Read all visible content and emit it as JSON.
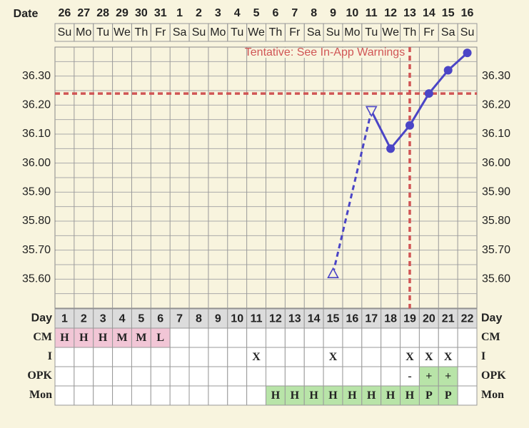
{
  "chart_data": {
    "type": "line",
    "date_label": "Date",
    "dates": [
      "26",
      "27",
      "28",
      "29",
      "30",
      "31",
      "1",
      "2",
      "3",
      "4",
      "5",
      "6",
      "7",
      "8",
      "9",
      "10",
      "11",
      "12",
      "13",
      "14",
      "15",
      "16"
    ],
    "weekdays": [
      "Su",
      "Mo",
      "Tu",
      "We",
      "Th",
      "Fr",
      "Sa",
      "Su",
      "Mo",
      "Tu",
      "We",
      "Th",
      "Fr",
      "Sa",
      "Su",
      "Mo",
      "Tu",
      "We",
      "Th",
      "Fr",
      "Sa",
      "Su"
    ],
    "x": [
      15,
      17,
      18,
      19,
      20,
      21,
      22
    ],
    "values": [
      35.62,
      36.18,
      36.05,
      36.13,
      36.24,
      36.32,
      36.38
    ],
    "markers": [
      "triangle-up",
      "triangle-down",
      "circle",
      "circle",
      "circle",
      "circle",
      "circle"
    ],
    "color": "#4b45c6",
    "ylim": [
      35.5,
      36.4
    ],
    "yticks": [
      {
        "value": 35.6,
        "label": "35.60"
      },
      {
        "value": 35.7,
        "label": "35.70"
      },
      {
        "value": 35.8,
        "label": "35.80"
      },
      {
        "value": 35.9,
        "label": "35.90"
      },
      {
        "value": 36.0,
        "label": "36.00"
      },
      {
        "value": 36.1,
        "label": "36.10"
      },
      {
        "value": 36.2,
        "label": "36.20"
      },
      {
        "value": 36.3,
        "label": "36.30"
      }
    ],
    "grid_step": 0.05,
    "cover_line": 36.24,
    "ovulation_day": 19,
    "marker_color": "#d05555",
    "annotation": "Tentative: See In-App Warnings",
    "rows": [
      {
        "label": "Day",
        "cells": [
          "1",
          "2",
          "3",
          "4",
          "5",
          "6",
          "7",
          "8",
          "9",
          "10",
          "11",
          "12",
          "13",
          "14",
          "15",
          "16",
          "17",
          "18",
          "19",
          "20",
          "21",
          "22"
        ],
        "fill": "#dcdcdc"
      },
      {
        "label": "CM",
        "cells": [
          "H",
          "H",
          "H",
          "M",
          "M",
          "L",
          null,
          null,
          null,
          null,
          null,
          null,
          null,
          null,
          null,
          null,
          null,
          null,
          null,
          null,
          null,
          null
        ],
        "fill": "#f2c6d6"
      },
      {
        "label": "I",
        "cells": [
          null,
          null,
          null,
          null,
          null,
          null,
          null,
          null,
          null,
          null,
          "X",
          null,
          null,
          null,
          "X",
          null,
          null,
          null,
          "X",
          "X",
          "X",
          null
        ],
        "fill": null
      },
      {
        "label": "OPK",
        "cells": [
          null,
          null,
          null,
          null,
          null,
          null,
          null,
          null,
          null,
          null,
          null,
          null,
          null,
          null,
          null,
          null,
          null,
          null,
          "-",
          "+",
          "+",
          null
        ],
        "fill": "#b8e4a8",
        "fill_on": [
          "+"
        ]
      },
      {
        "label": "Mon",
        "cells": [
          null,
          null,
          null,
          null,
          null,
          null,
          null,
          null,
          null,
          null,
          null,
          "H",
          "H",
          "H",
          "H",
          "H",
          "H",
          "H",
          "H",
          "P",
          "P",
          null
        ],
        "fill": "#b8e4a8"
      }
    ]
  }
}
